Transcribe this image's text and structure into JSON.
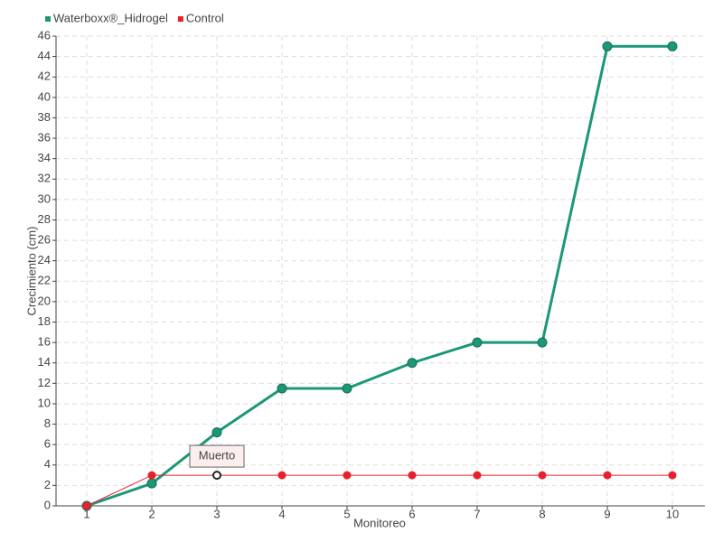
{
  "chart_data": {
    "type": "line",
    "x_label": "Monitoreo",
    "y_label": "Crecimiento (cm)",
    "categories": [
      "1",
      "2",
      "3",
      "4",
      "5",
      "6",
      "7",
      "8",
      "9",
      "10"
    ],
    "series": [
      {
        "name": "Waterboxx®_Hidrogel",
        "color": "#1a9878",
        "values": [
          0,
          2.2,
          7.2,
          11.5,
          11.5,
          14,
          16,
          16,
          45,
          45
        ]
      },
      {
        "name": "Control",
        "color": "#e8202e",
        "values": [
          0,
          3,
          3,
          3,
          3,
          3,
          3,
          3,
          3,
          3
        ]
      }
    ],
    "annotations": [
      "Muerto"
    ],
    "ylim": [
      0,
      46
    ],
    "yticks": [
      0,
      2,
      4,
      6,
      8,
      10,
      12,
      14,
      16,
      18,
      20,
      22,
      24,
      26,
      28,
      30,
      32,
      34,
      36,
      38,
      40,
      42,
      44,
      46
    ],
    "grid": true
  }
}
